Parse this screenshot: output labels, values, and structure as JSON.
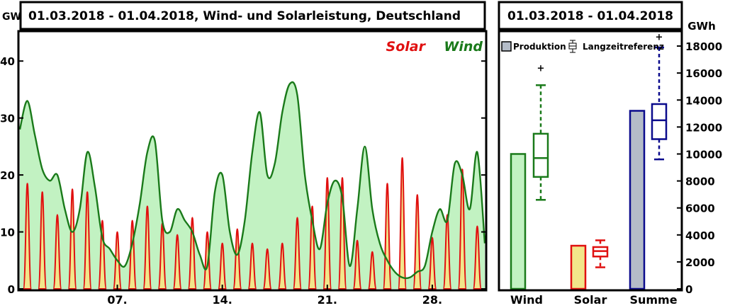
{
  "left_chart": {
    "title": "01.03.2018 - 01.04.2018, Wind- und Solarleistung, Deutschland",
    "unit": "GW",
    "legend": {
      "solar": "Solar",
      "wind": "Wind"
    },
    "y_ticks": [
      0,
      10,
      20,
      30,
      40
    ],
    "x_ticks": [
      "07.",
      "14.",
      "21.",
      "28."
    ]
  },
  "right_chart": {
    "title": "01.03.2018 - 01.04.2018",
    "unit": "GWh",
    "legend": {
      "production": "Produktion",
      "reference": "Langzeitreferenz"
    },
    "y_ticks": [
      0,
      2000,
      4000,
      6000,
      8000,
      10000,
      12000,
      14000,
      16000,
      18000
    ],
    "categories": [
      "Wind",
      "Solar",
      "Summe"
    ]
  },
  "colors": {
    "wind": "#1a7a1a",
    "wind_fill": "#c2f2c2",
    "solar": "#e01010",
    "solar_fill": "#f2e68a",
    "sum": "#0a0a8c",
    "sum_fill": "#b4bcc8"
  },
  "chart_data": [
    {
      "type": "area",
      "title": "01.03.2018 - 01.04.2018, Wind- und Solarleistung, Deutschland",
      "ylabel": "GW",
      "xlim": [
        "2018-03-01",
        "2018-04-01"
      ],
      "ylim": [
        0,
        45
      ],
      "grid": false,
      "legend_position": "top-right",
      "series": [
        {
          "name": "Wind",
          "x": [
            "2018-03-01",
            "2018-03-01 12:00",
            "2018-03-02",
            "2018-03-02 12:00",
            "2018-03-03",
            "2018-03-03 12:00",
            "2018-03-04",
            "2018-03-04 12:00",
            "2018-03-05",
            "2018-03-05 12:00",
            "2018-03-06",
            "2018-03-06 12:00",
            "2018-03-07",
            "2018-03-07 12:00",
            "2018-03-08",
            "2018-03-08 12:00",
            "2018-03-09",
            "2018-03-09 12:00",
            "2018-03-10",
            "2018-03-10 12:00",
            "2018-03-11",
            "2018-03-11 12:00",
            "2018-03-12",
            "2018-03-12 12:00",
            "2018-03-13",
            "2018-03-13 12:00",
            "2018-03-14",
            "2018-03-14 12:00",
            "2018-03-15",
            "2018-03-15 12:00",
            "2018-03-16",
            "2018-03-16 12:00",
            "2018-03-17",
            "2018-03-17 12:00",
            "2018-03-18",
            "2018-03-18 12:00",
            "2018-03-19",
            "2018-03-19 12:00",
            "2018-03-20",
            "2018-03-20 12:00",
            "2018-03-21",
            "2018-03-21 12:00",
            "2018-03-22",
            "2018-03-22 12:00",
            "2018-03-23",
            "2018-03-23 12:00",
            "2018-03-24",
            "2018-03-24 12:00",
            "2018-03-25",
            "2018-03-25 12:00",
            "2018-03-26",
            "2018-03-26 12:00",
            "2018-03-27",
            "2018-03-27 12:00",
            "2018-03-28",
            "2018-03-28 12:00",
            "2018-03-29",
            "2018-03-29 12:00",
            "2018-03-30",
            "2018-03-30 12:00",
            "2018-03-31",
            "2018-03-31 12:00",
            "2018-04-01"
          ],
          "values": [
            28,
            33,
            27,
            21,
            19,
            20,
            14,
            10,
            14,
            24,
            18,
            9,
            7,
            5,
            4,
            8,
            15,
            24,
            26,
            12,
            10,
            14,
            12,
            10,
            6,
            4,
            17,
            20,
            10,
            6,
            12,
            24,
            31,
            20,
            22,
            31,
            36,
            34,
            20,
            12,
            7,
            15,
            19,
            16,
            4,
            14,
            25,
            14,
            8,
            5,
            3,
            2,
            2,
            3,
            4,
            10,
            14,
            12,
            22,
            20,
            14,
            24,
            8
          ]
        },
        {
          "name": "Solar",
          "x": [
            "2018-03-01",
            "2018-03-02",
            "2018-03-03",
            "2018-03-04",
            "2018-03-05",
            "2018-03-06",
            "2018-03-07",
            "2018-03-08",
            "2018-03-09",
            "2018-03-10",
            "2018-03-11",
            "2018-03-12",
            "2018-03-13",
            "2018-03-14",
            "2018-03-15",
            "2018-03-16",
            "2018-03-17",
            "2018-03-18",
            "2018-03-19",
            "2018-03-20",
            "2018-03-21",
            "2018-03-22",
            "2018-03-23",
            "2018-03-24",
            "2018-03-25",
            "2018-03-26",
            "2018-03-27",
            "2018-03-28",
            "2018-03-29",
            "2018-03-30",
            "2018-03-31"
          ],
          "values": [
            18.5,
            17,
            13,
            17.5,
            17,
            12,
            10,
            12,
            14.5,
            11.5,
            9.5,
            12.5,
            10,
            8,
            10.5,
            8,
            7,
            8,
            12.5,
            14.5,
            19.5,
            19.5,
            8.5,
            6.5,
            18.5,
            23,
            16.5,
            9,
            13,
            21,
            11
          ]
        }
      ]
    },
    {
      "type": "bar",
      "title": "01.03.2018 - 01.04.2018",
      "ylabel": "GWh",
      "ylim": [
        0,
        19000
      ],
      "legend_position": "top",
      "categories": [
        "Wind",
        "Solar",
        "Summe"
      ],
      "series": [
        {
          "name": "Produktion",
          "values": [
            10000,
            3200,
            13200
          ]
        },
        {
          "name": "Langzeitreferenz",
          "boxes": [
            {
              "category": "Wind",
              "whisker_low": 6600,
              "q1": 8300,
              "median": 9700,
              "q3": 11500,
              "whisker_high": 15100,
              "outliers": [
                16400
              ]
            },
            {
              "category": "Solar",
              "whisker_low": 1600,
              "q1": 2400,
              "median": 2800,
              "q3": 3100,
              "whisker_high": 3600,
              "outliers": []
            },
            {
              "category": "Summe",
              "whisker_low": 9600,
              "q1": 11100,
              "median": 12500,
              "q3": 13700,
              "whisker_high": 17900,
              "outliers": [
                18700
              ]
            }
          ]
        }
      ]
    }
  ]
}
